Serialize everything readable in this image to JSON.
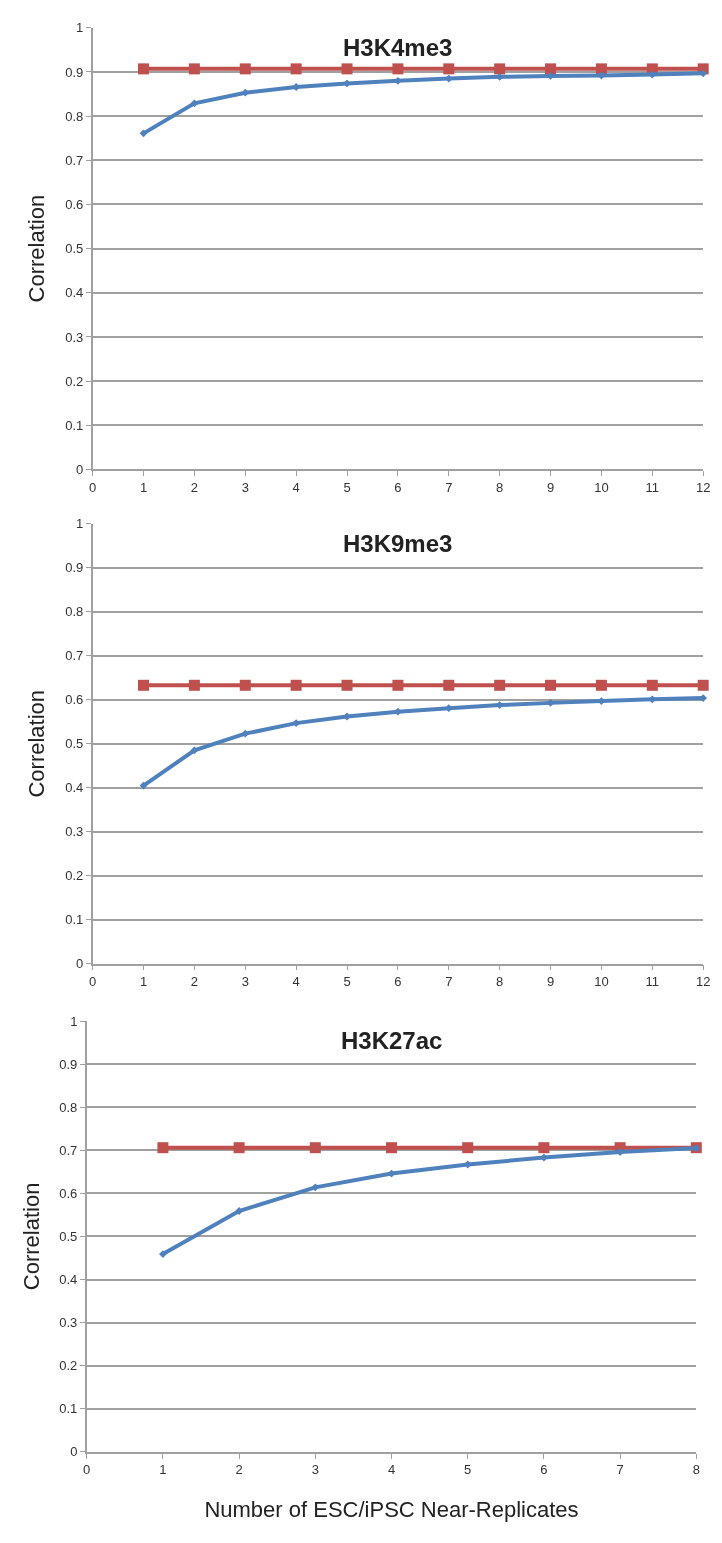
{
  "chart_data": [
    {
      "type": "line",
      "title": "H3K4me3",
      "ylabel": "Correlation",
      "x": [
        1,
        2,
        3,
        4,
        5,
        6,
        7,
        8,
        9,
        10,
        11,
        12
      ],
      "xlim": [
        0,
        12
      ],
      "xticks": [
        0,
        1,
        2,
        3,
        4,
        5,
        6,
        7,
        8,
        9,
        10,
        11,
        12
      ],
      "ylim": [
        0,
        1
      ],
      "yticks": [
        0,
        0.1,
        0.2,
        0.3,
        0.4,
        0.5,
        0.6,
        0.7,
        0.8,
        0.9,
        1
      ],
      "grid": "y",
      "series": [
        {
          "color": "#c0504d",
          "marker": "square",
          "values": [
            0.907,
            0.907,
            0.907,
            0.907,
            0.907,
            0.907,
            0.907,
            0.907,
            0.907,
            0.907,
            0.907,
            0.907
          ]
        },
        {
          "color": "#4f81bd",
          "marker": "diamond",
          "values": [
            0.761,
            0.829,
            0.853,
            0.866,
            0.874,
            0.88,
            0.885,
            0.889,
            0.891,
            0.892,
            0.894,
            0.897
          ]
        }
      ]
    },
    {
      "type": "line",
      "title": "H3K9me3",
      "ylabel": "Correlation",
      "x": [
        1,
        2,
        3,
        4,
        5,
        6,
        7,
        8,
        9,
        10,
        11,
        12
      ],
      "xlim": [
        0,
        12
      ],
      "xticks": [
        0,
        1,
        2,
        3,
        4,
        5,
        6,
        7,
        8,
        9,
        10,
        11,
        12
      ],
      "ylim": [
        0,
        1
      ],
      "yticks": [
        0,
        0.1,
        0.2,
        0.3,
        0.4,
        0.5,
        0.6,
        0.7,
        0.8,
        0.9,
        1
      ],
      "grid": "y",
      "series": [
        {
          "color": "#c0504d",
          "marker": "square",
          "values": [
            0.633,
            0.633,
            0.633,
            0.633,
            0.633,
            0.633,
            0.633,
            0.633,
            0.633,
            0.633,
            0.633,
            0.633
          ]
        },
        {
          "color": "#4f81bd",
          "marker": "diamond",
          "values": [
            0.405,
            0.485,
            0.523,
            0.547,
            0.562,
            0.573,
            0.581,
            0.588,
            0.593,
            0.597,
            0.601,
            0.604
          ]
        }
      ]
    },
    {
      "type": "line",
      "title": "H3K27ac",
      "ylabel": "Correlation",
      "xlabel": "Number of ESC/iPSC Near-Replicates",
      "x": [
        1,
        2,
        3,
        4,
        5,
        6,
        7,
        8
      ],
      "xlim": [
        0,
        8
      ],
      "xticks": [
        0,
        1,
        2,
        3,
        4,
        5,
        6,
        7,
        8
      ],
      "ylim": [
        0,
        1
      ],
      "yticks": [
        0,
        0.1,
        0.2,
        0.3,
        0.4,
        0.5,
        0.6,
        0.7,
        0.8,
        0.9,
        1
      ],
      "grid": "y",
      "series": [
        {
          "color": "#c0504d",
          "marker": "square",
          "values": [
            0.706,
            0.706,
            0.706,
            0.706,
            0.706,
            0.706,
            0.706,
            0.706
          ]
        },
        {
          "color": "#4f81bd",
          "marker": "diamond",
          "values": [
            0.459,
            0.559,
            0.614,
            0.646,
            0.667,
            0.683,
            0.696,
            0.705
          ]
        }
      ]
    }
  ]
}
